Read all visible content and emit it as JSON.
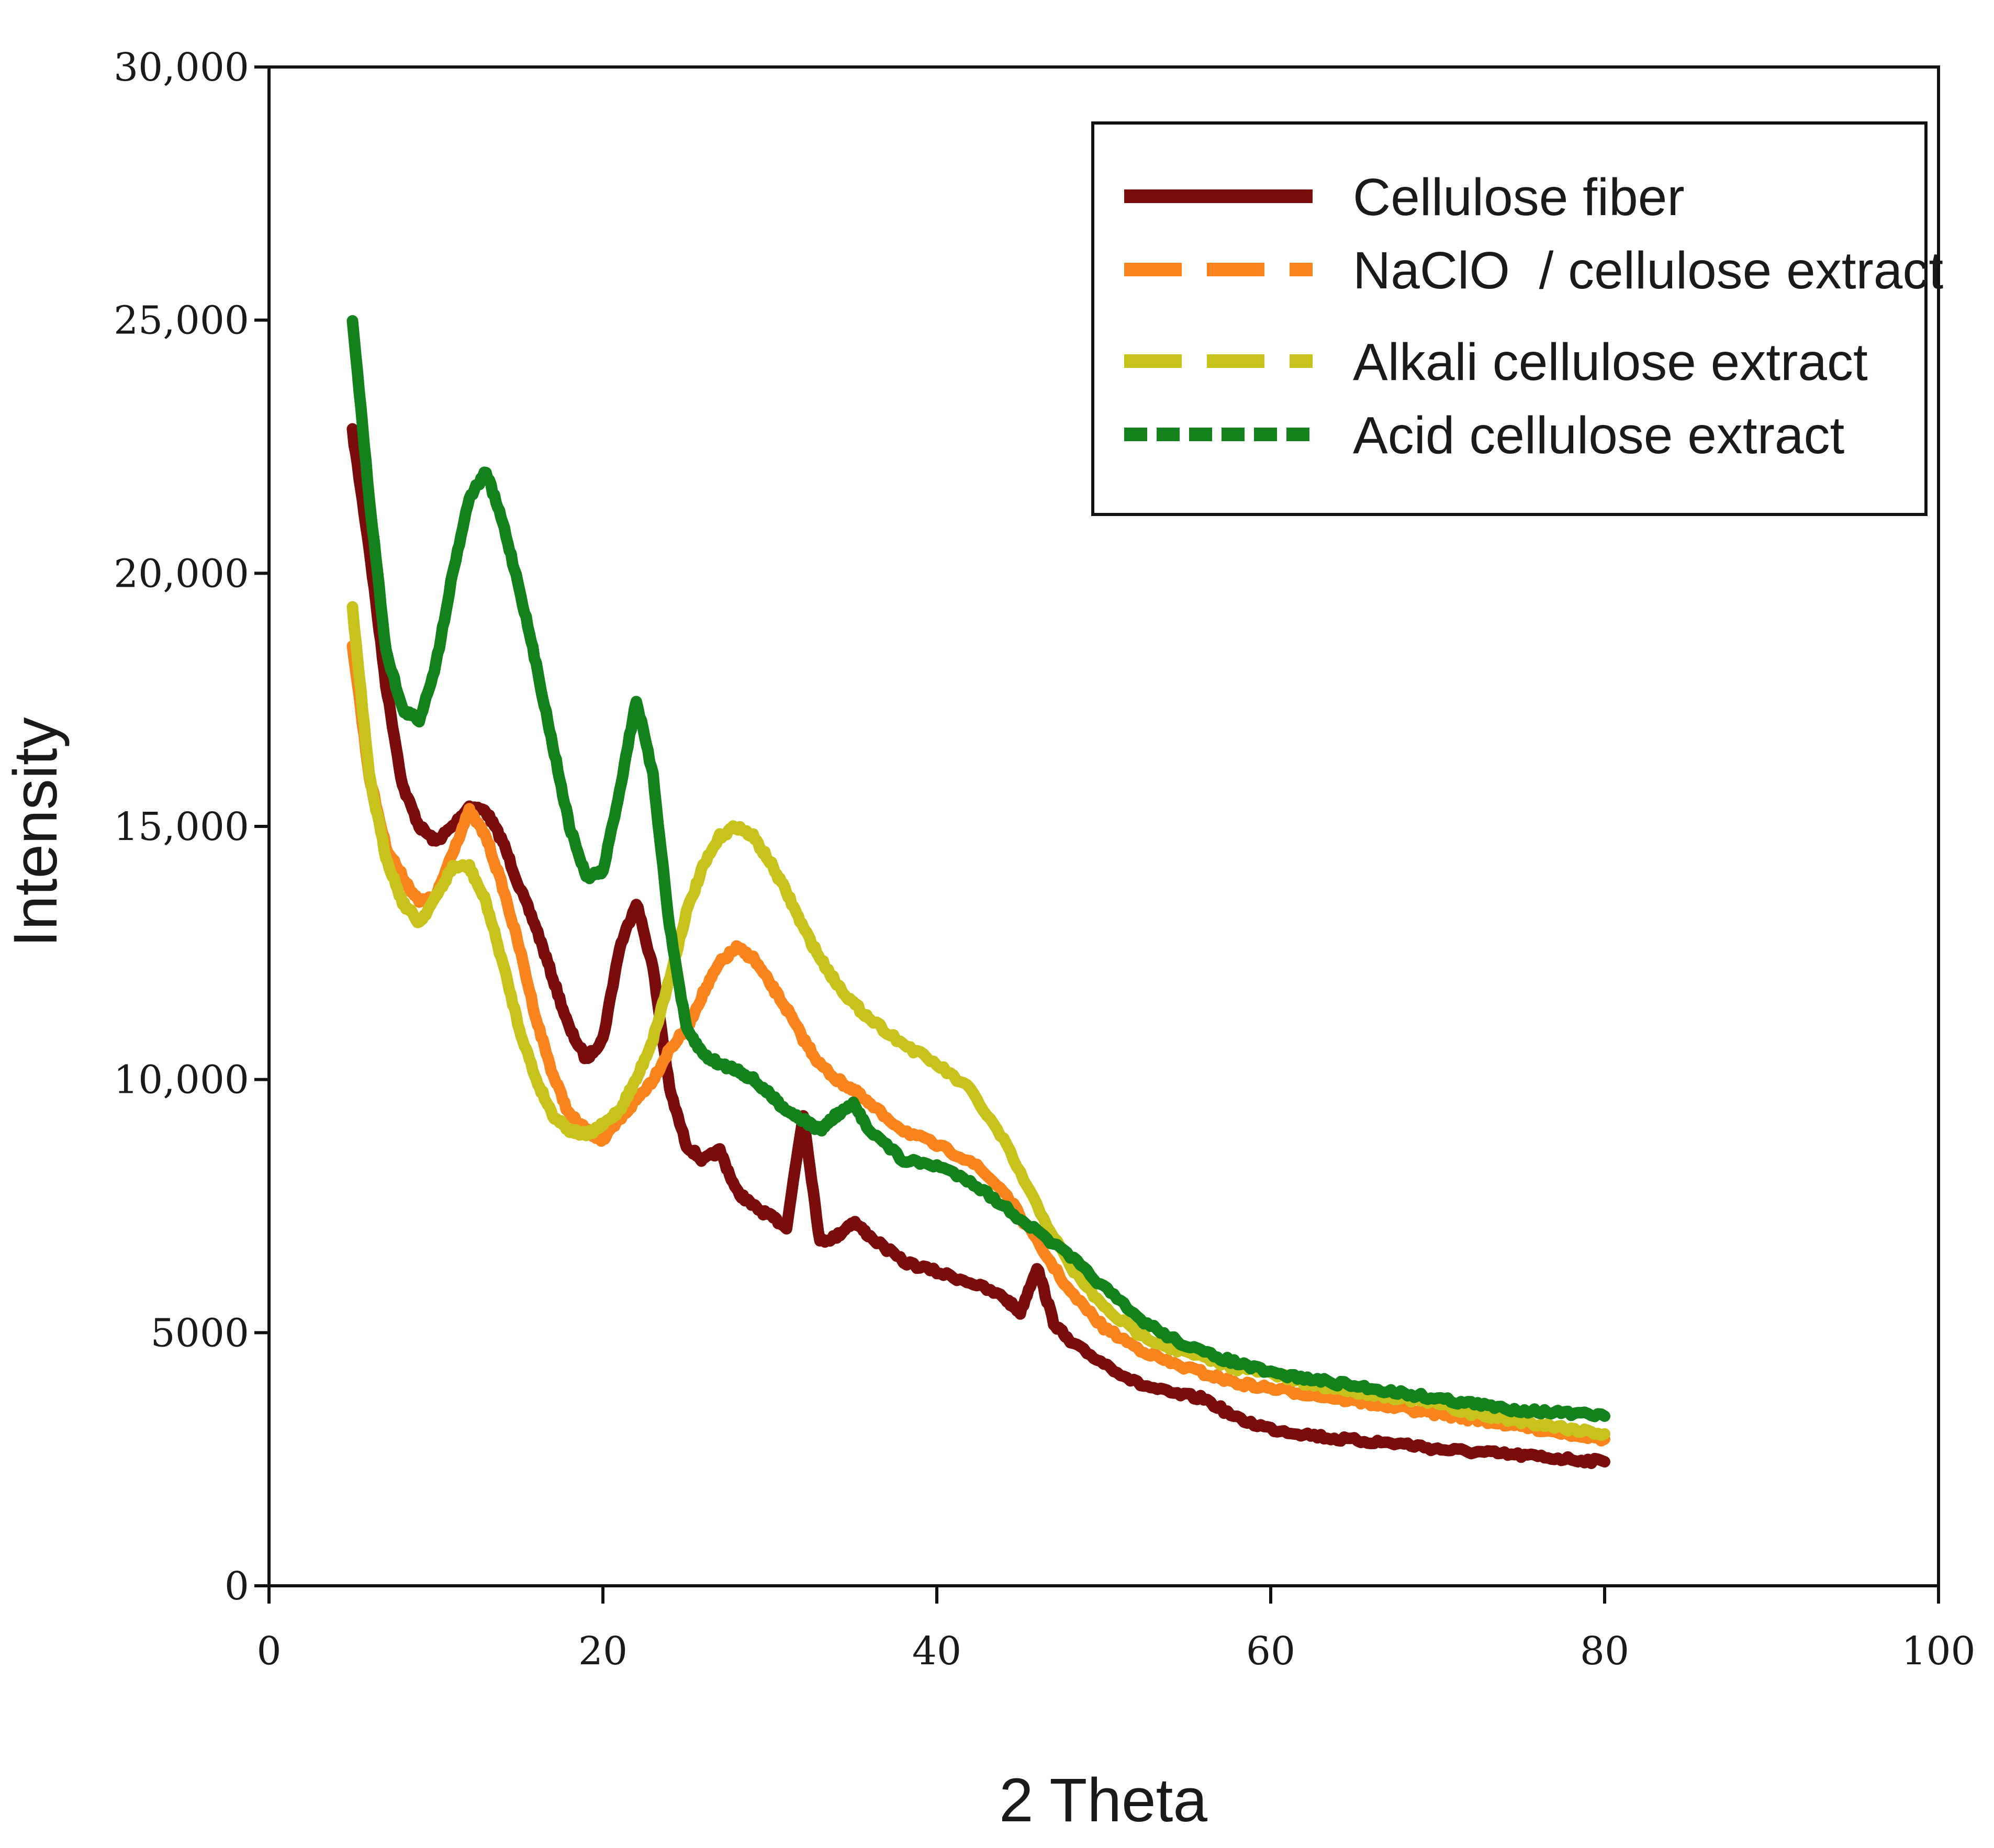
{
  "chart_data": {
    "type": "line",
    "title": "",
    "xlabel": "2 Theta",
    "ylabel": "Intensity",
    "xlim": [
      0,
      100
    ],
    "ylim": [
      0,
      30000
    ],
    "xticks": [
      0,
      20,
      40,
      60,
      80,
      100
    ],
    "xtick_labels": [
      "0",
      "20",
      "40",
      "60",
      "80",
      "100"
    ],
    "yticks": [
      0,
      5000,
      10000,
      15000,
      20000,
      25000,
      30000
    ],
    "ytick_labels": [
      "0",
      "5000",
      "10,000",
      "15,000",
      "20,000",
      "25,000",
      "30,000"
    ],
    "grid": false,
    "legend_position": "top-right",
    "series": [
      {
        "name": "Cellulose fiber",
        "color": "#7b0c0c",
        "dash": "solid",
        "x": [
          5,
          6,
          7,
          8,
          9,
          10,
          11,
          12,
          13,
          14,
          15,
          16,
          17,
          18,
          19,
          20,
          21,
          22,
          23,
          24,
          25,
          26,
          27,
          28,
          29,
          30,
          31,
          32,
          33,
          34,
          35,
          36,
          38,
          40,
          42,
          44,
          45,
          46,
          47,
          48,
          50,
          52,
          54,
          56,
          58,
          60,
          62,
          64,
          66,
          68,
          70,
          72,
          74,
          76,
          78,
          80
        ],
        "y": [
          22800,
          20500,
          17800,
          15800,
          15000,
          14700,
          15000,
          15400,
          15300,
          14700,
          13800,
          13000,
          12000,
          11000,
          10400,
          10800,
          12600,
          13500,
          12200,
          9800,
          8700,
          8400,
          8600,
          7800,
          7500,
          7300,
          7100,
          9300,
          6800,
          6900,
          7200,
          6900,
          6400,
          6200,
          6000,
          5700,
          5400,
          6300,
          5200,
          4800,
          4400,
          4000,
          3800,
          3700,
          3300,
          3100,
          3000,
          2900,
          2850,
          2800,
          2700,
          2650,
          2600,
          2550,
          2500,
          2450
        ]
      },
      {
        "name": "NaClO  / cellulose extract",
        "color": "#f9831c",
        "dash": "long-dash",
        "x": [
          5,
          6,
          7,
          8,
          9,
          10,
          11,
          12,
          13,
          14,
          15,
          16,
          17,
          18,
          19,
          20,
          21,
          22,
          23,
          24,
          25,
          26,
          27,
          28,
          29,
          30,
          31,
          32,
          33,
          34,
          35,
          36,
          38,
          40,
          42,
          44,
          46,
          48,
          50,
          52,
          54,
          56,
          58,
          60,
          62,
          64,
          66,
          68,
          70,
          72,
          74,
          76,
          78,
          80
        ],
        "y": [
          18600,
          16000,
          14600,
          14000,
          13500,
          13600,
          14500,
          15300,
          14800,
          13800,
          12600,
          11200,
          10100,
          9300,
          9000,
          8800,
          9200,
          9600,
          10000,
          10600,
          11000,
          11700,
          12300,
          12600,
          12400,
          11900,
          11400,
          10800,
          10300,
          10000,
          9800,
          9500,
          9000,
          8700,
          8400,
          7800,
          6800,
          5800,
          5100,
          4700,
          4400,
          4200,
          4000,
          3900,
          3800,
          3700,
          3600,
          3500,
          3400,
          3300,
          3200,
          3100,
          3000,
          2900
        ]
      },
      {
        "name": "Alkali cellulose extract",
        "color": "#c8c31c",
        "dash": "long-dash",
        "x": [
          5,
          6,
          7,
          8,
          9,
          10,
          11,
          12,
          13,
          14,
          15,
          16,
          17,
          18,
          19,
          20,
          21,
          22,
          23,
          24,
          25,
          26,
          27,
          28,
          29,
          30,
          31,
          32,
          33,
          34,
          35,
          36,
          38,
          40,
          42,
          44,
          46,
          48,
          50,
          52,
          54,
          56,
          58,
          60,
          62,
          64,
          66,
          68,
          70,
          72,
          74,
          76,
          78,
          80
        ],
        "y": [
          19300,
          16000,
          14400,
          13500,
          13100,
          13600,
          14200,
          14200,
          13500,
          12300,
          11000,
          10000,
          9300,
          9000,
          8900,
          9100,
          9400,
          10000,
          10800,
          12000,
          13300,
          14200,
          14800,
          15000,
          14800,
          14300,
          13700,
          13000,
          12400,
          11900,
          11500,
          11200,
          10700,
          10300,
          9800,
          8800,
          7500,
          6300,
          5500,
          5000,
          4700,
          4500,
          4300,
          4200,
          4000,
          3900,
          3800,
          3700,
          3600,
          3400,
          3300,
          3200,
          3100,
          3000
        ]
      },
      {
        "name": "Acid cellulose extract",
        "color": "#14821c",
        "dash": "short-dash",
        "x": [
          5,
          6,
          7,
          8,
          9,
          10,
          11,
          12,
          13,
          14,
          15,
          16,
          17,
          18,
          19,
          20,
          21,
          22,
          23,
          24,
          25,
          26,
          27,
          28,
          29,
          30,
          31,
          32,
          33,
          34,
          35,
          36,
          38,
          40,
          42,
          44,
          46,
          48,
          50,
          52,
          54,
          56,
          58,
          60,
          62,
          64,
          66,
          68,
          70,
          72,
          74,
          76,
          78,
          80
        ],
        "y": [
          25000,
          21500,
          18500,
          17300,
          17100,
          18200,
          20000,
          21500,
          22000,
          21000,
          19700,
          18200,
          16600,
          15000,
          14000,
          14100,
          15700,
          17500,
          16000,
          13000,
          11000,
          10500,
          10300,
          10200,
          10000,
          9700,
          9400,
          9200,
          9000,
          9300,
          9500,
          9000,
          8400,
          8300,
          8000,
          7500,
          7000,
          6500,
          5900,
          5300,
          4900,
          4600,
          4400,
          4200,
          4100,
          4000,
          3900,
          3800,
          3700,
          3600,
          3500,
          3450,
          3400,
          3350
        ]
      }
    ]
  }
}
